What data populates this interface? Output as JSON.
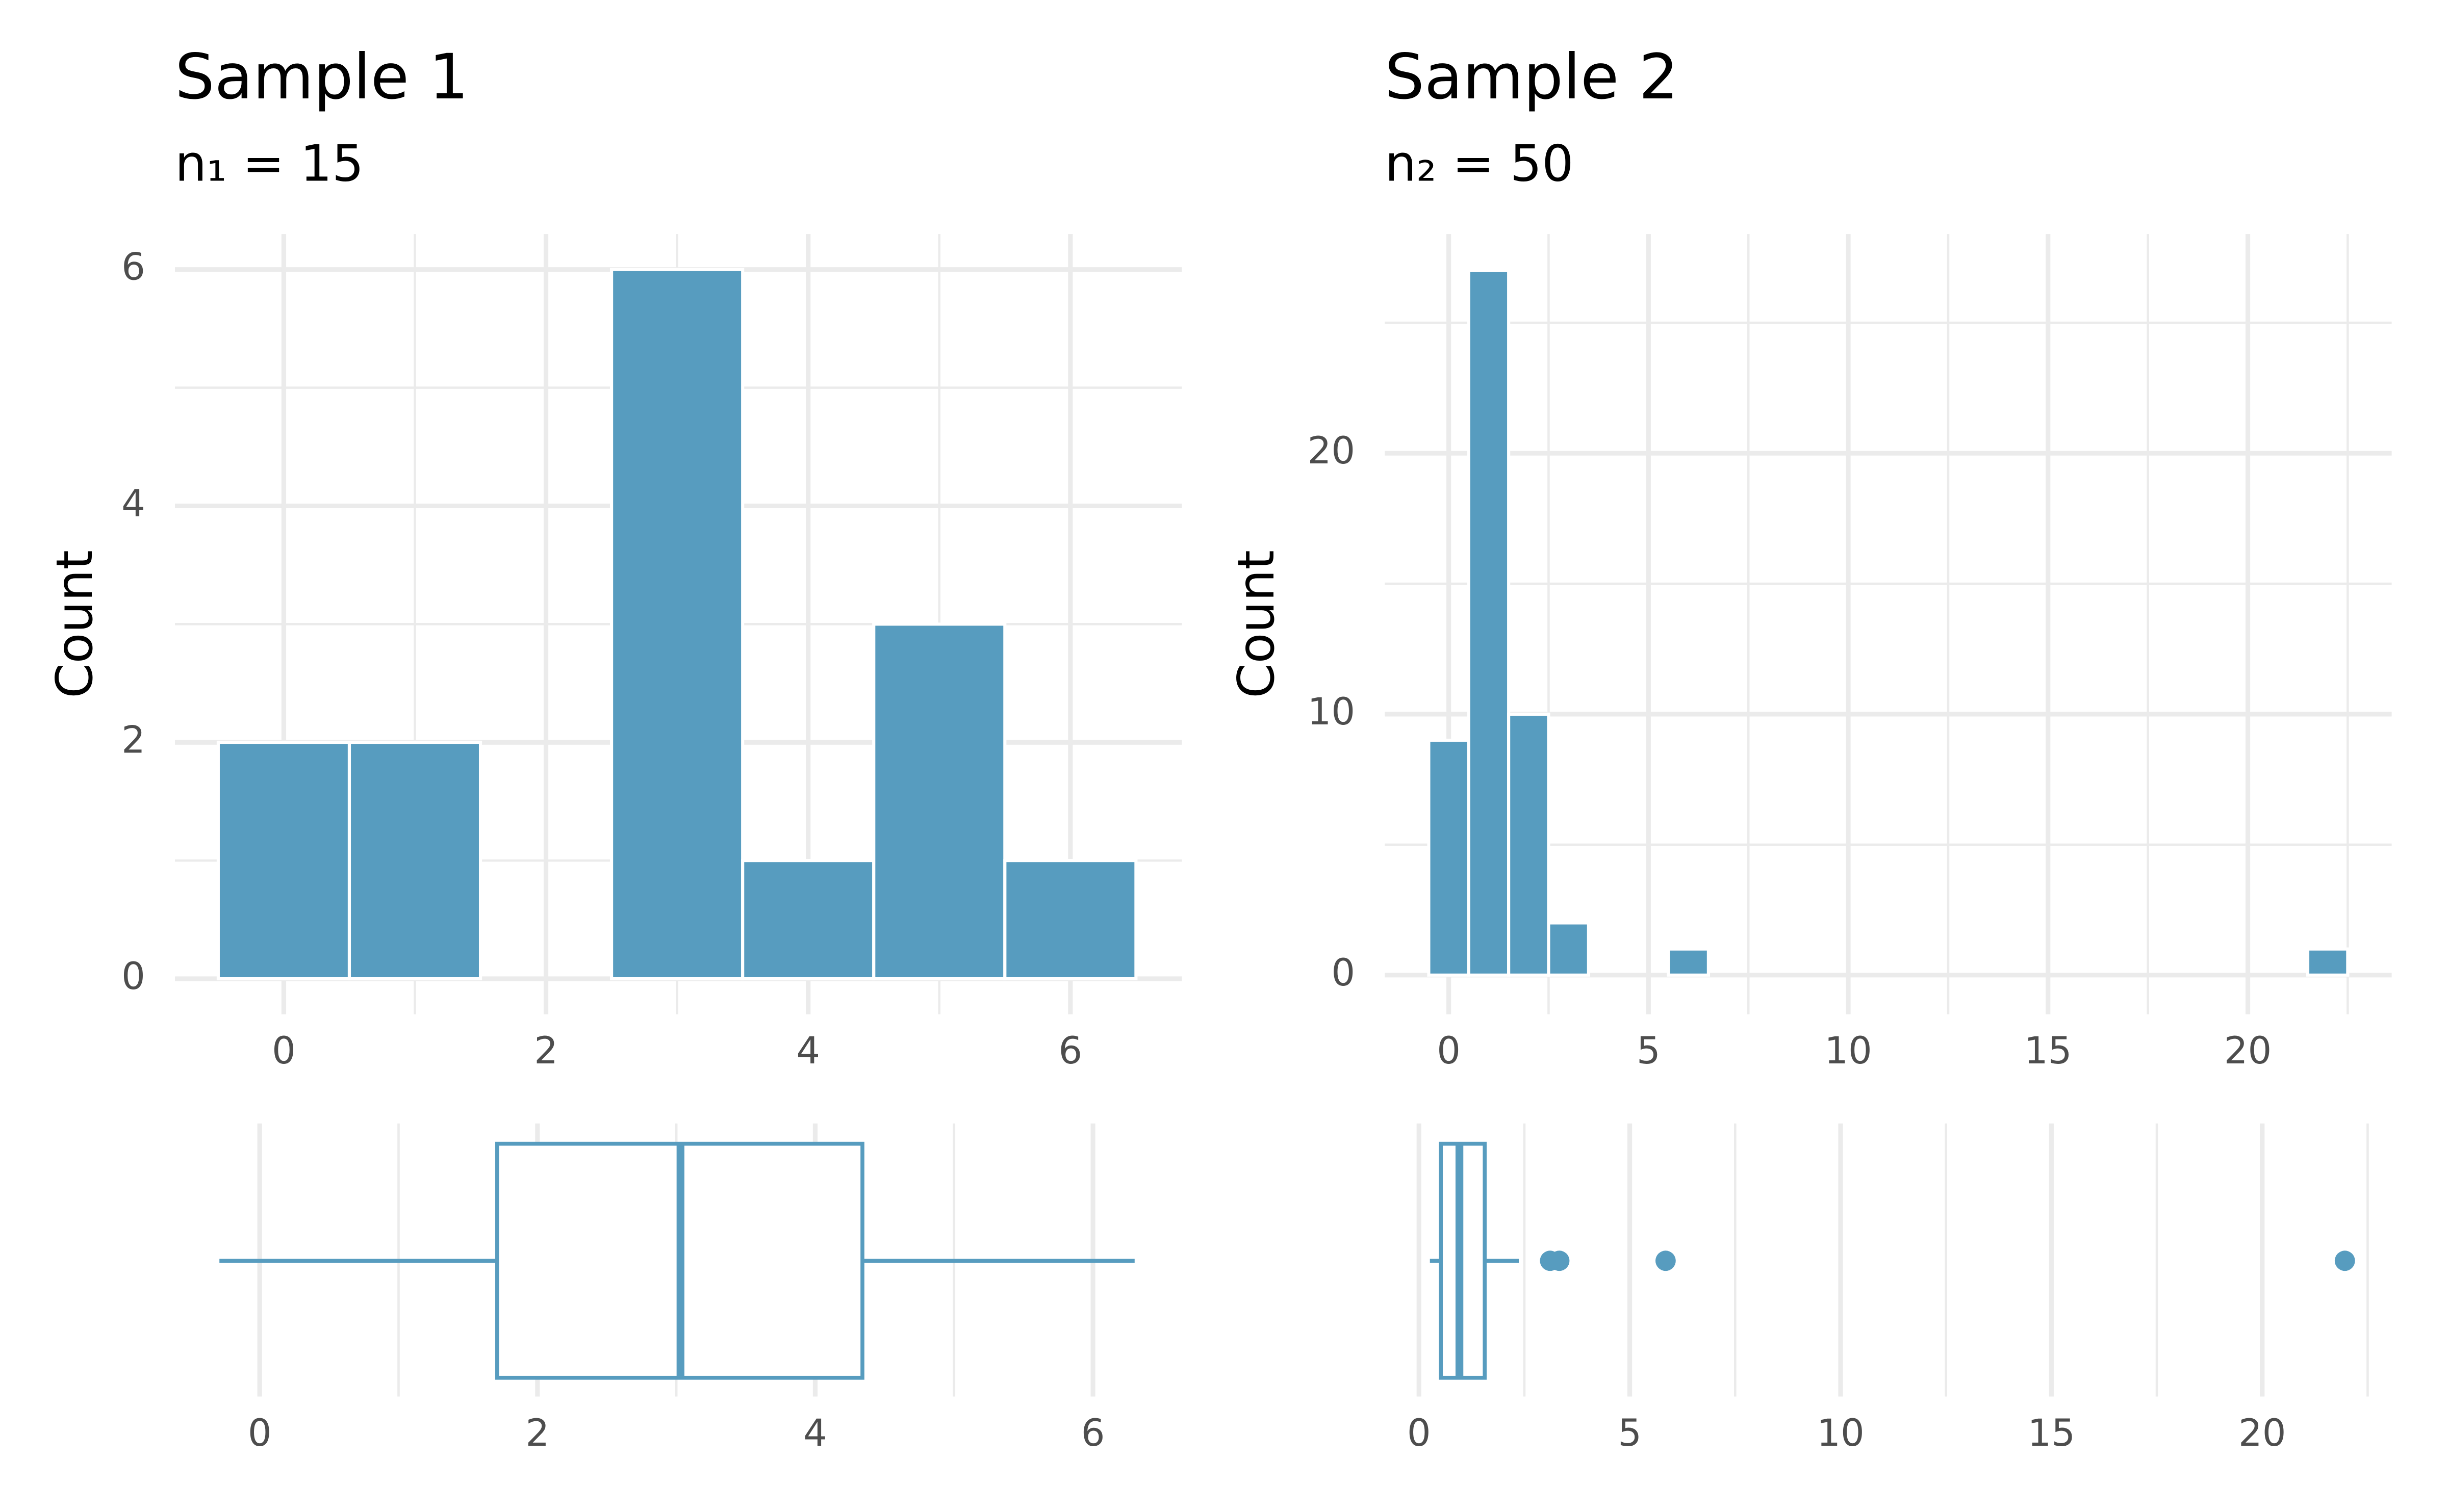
{
  "chart_data": [
    {
      "type": "histogram",
      "title": "Sample 1",
      "subtitle": "n₁ = 15",
      "ylabel": "Count",
      "bins": [
        -0.5,
        0.5,
        1.5,
        2.5,
        3.5,
        4.5,
        5.5,
        6.5
      ],
      "counts": [
        2,
        2,
        0,
        6,
        1,
        3,
        1
      ],
      "color": "#579cbf",
      "xlim": [
        -0.83,
        6.85
      ],
      "xticks": [
        0,
        2,
        4,
        6
      ],
      "ylim": [
        -0.3,
        6.3
      ],
      "yticks": [
        0,
        2,
        4,
        6
      ],
      "grid": true
    },
    {
      "type": "histogram",
      "title": "Sample 2",
      "subtitle": "n₂ = 50",
      "ylabel": "Count",
      "bins": [
        -0.5,
        0.5,
        1.5,
        2.5,
        3.5,
        4.5,
        5.5,
        6.5,
        7.5,
        8.5,
        9.5,
        10.5,
        11.5,
        12.5,
        13.5,
        14.5,
        15.5,
        16.5,
        17.5,
        18.5,
        19.5,
        20.5,
        21.5,
        22.5
      ],
      "counts": [
        9,
        27,
        10,
        2,
        0,
        0,
        1,
        0,
        0,
        0,
        0,
        0,
        0,
        0,
        0,
        0,
        0,
        0,
        0,
        0,
        0,
        0,
        1
      ],
      "color": "#579cbf",
      "xlim": [
        -1.6,
        23.6
      ],
      "xticks": [
        0,
        5,
        10,
        15,
        20
      ],
      "ylim": [
        -1.5,
        28.4
      ],
      "yticks": [
        0,
        10,
        20
      ],
      "grid": true
    },
    {
      "type": "boxplot",
      "whisker_low": -0.29,
      "q1": 1.71,
      "median": 3.03,
      "q3": 4.34,
      "whisker_high": 6.3,
      "outliers": [],
      "color": "#579cbf",
      "xlim": [
        -0.61,
        6.64
      ],
      "xticks": [
        0,
        2,
        4,
        6
      ],
      "grid": true
    },
    {
      "type": "boxplot",
      "whisker_low": 0.26,
      "q1": 0.52,
      "median": 0.96,
      "q3": 1.56,
      "whisker_high": 2.37,
      "outliers": [
        3.11,
        3.33,
        5.85,
        21.96
      ],
      "color": "#579cbf",
      "xlim": [
        -0.81,
        23.07
      ],
      "xticks": [
        0,
        5,
        10,
        15,
        20
      ],
      "grid": true
    }
  ]
}
